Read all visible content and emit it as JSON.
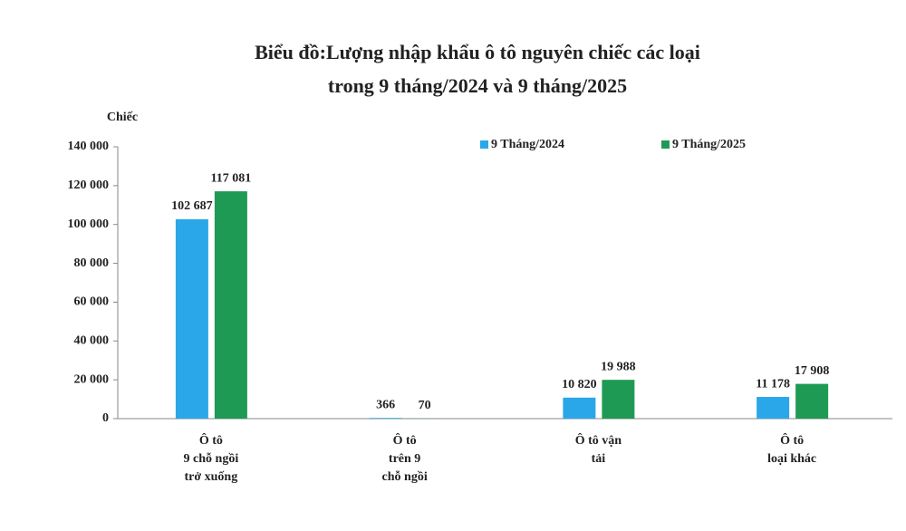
{
  "chart_data": {
    "type": "bar",
    "title": [
      "Biểu đồ:Lượng nhập khẩu ô tô nguyên chiếc các loại",
      "trong 9 tháng/2024 và 9 tháng/2025"
    ],
    "y_label": "Chiếc",
    "categories": [
      [
        "Ô tô",
        "9 chỗ ngồi",
        "trở xuống"
      ],
      [
        "Ô tô",
        "trên 9",
        "chỗ ngồi"
      ],
      [
        "Ô tô vận",
        "tải"
      ],
      [
        "Ô tô",
        "loại khác"
      ]
    ],
    "series": [
      {
        "name": "9 Tháng/2024",
        "color": "#2aa7e8",
        "values": [
          102687,
          366,
          10820,
          11178
        ],
        "value_labels": [
          "102 687",
          "366",
          "10 820",
          "11 178"
        ]
      },
      {
        "name": "9 Tháng/2025",
        "color": "#1f9a55",
        "values": [
          117081,
          70,
          19988,
          17908
        ],
        "value_labels": [
          "117 081",
          "70",
          "19 988",
          "17 908"
        ]
      }
    ],
    "ylim": [
      0,
      140000
    ],
    "yticks": [
      {
        "value": 0,
        "label": "0"
      },
      {
        "value": 20000,
        "label": "20 000"
      },
      {
        "value": 40000,
        "label": "40 000"
      },
      {
        "value": 60000,
        "label": "60 000"
      },
      {
        "value": 80000,
        "label": "80 000"
      },
      {
        "value": 100000,
        "label": "100 000"
      },
      {
        "value": 120000,
        "label": "120 000"
      },
      {
        "value": 140000,
        "label": "140 000"
      }
    ],
    "grid": false
  }
}
